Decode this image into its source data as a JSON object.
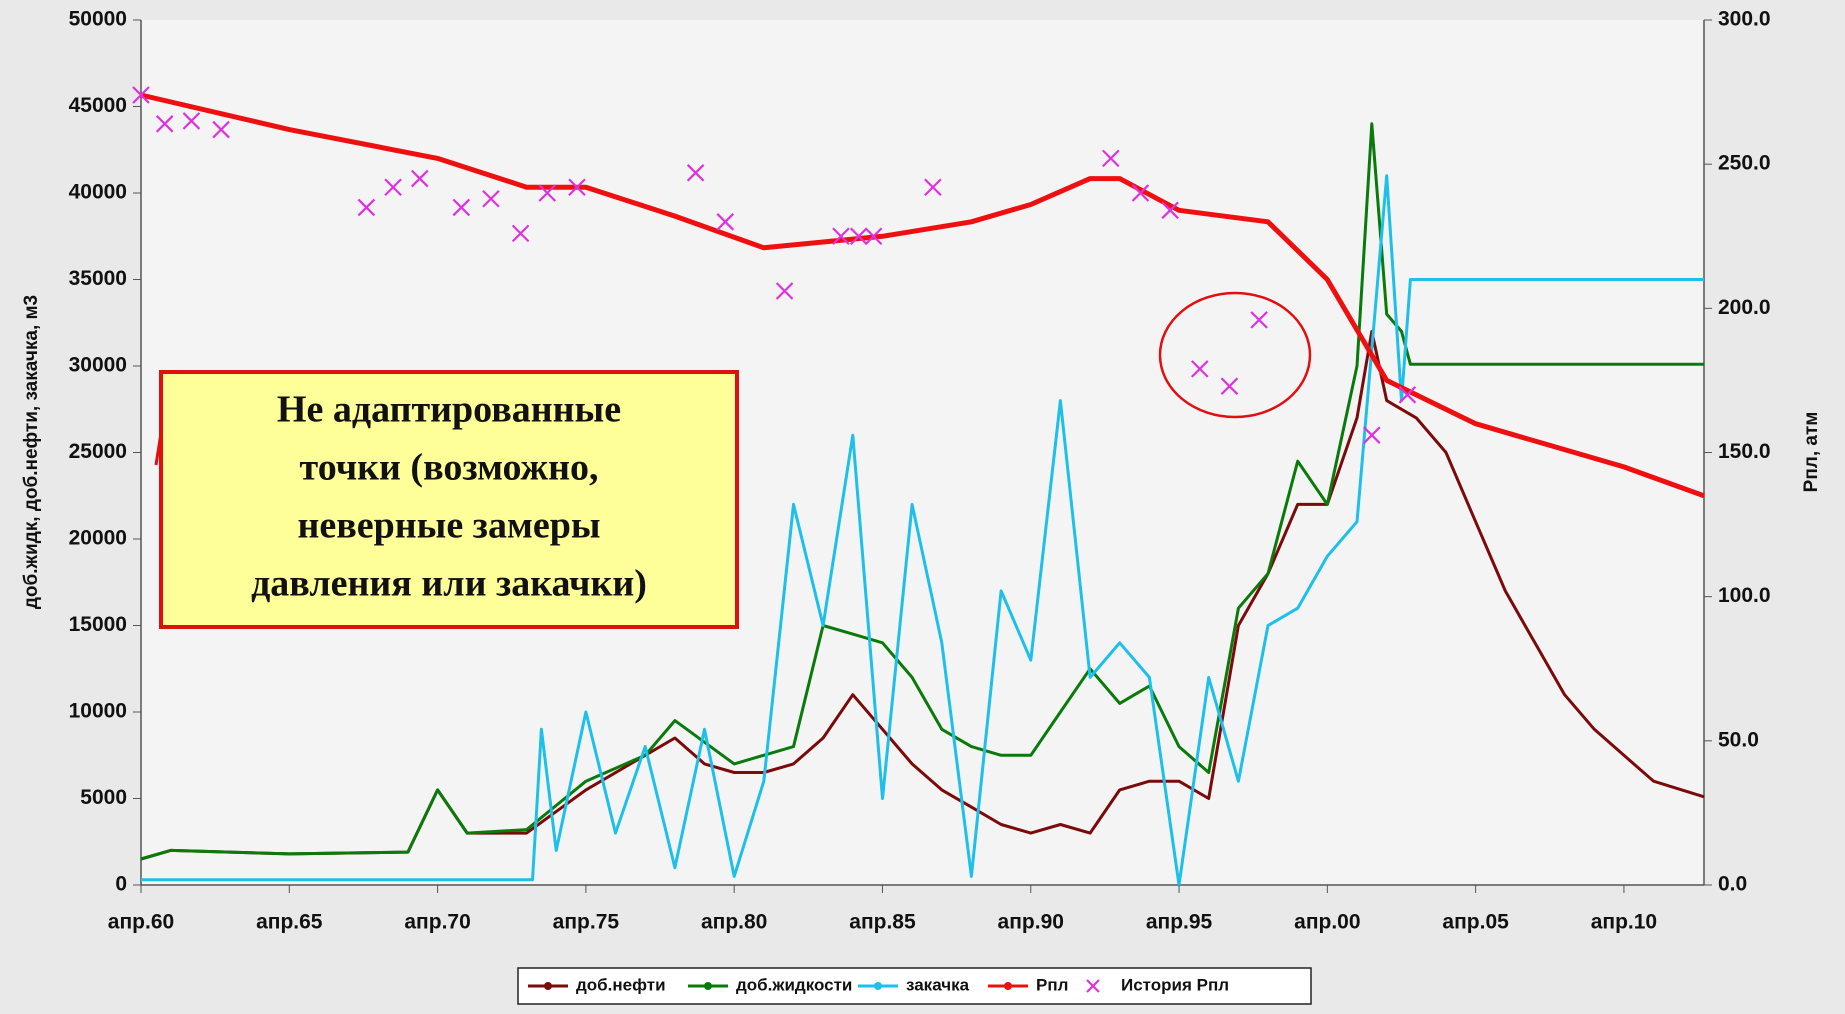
{
  "chart_data": {
    "type": "line",
    "ylabel": "доб.жидк, доб.нефти, закачка, м3",
    "y2label": "Рпл, атм",
    "xlim": [
      1960,
      2012.7
    ],
    "xticks": [
      {
        "value": 1960,
        "label": "апр.60"
      },
      {
        "value": 1965,
        "label": "апр.65"
      },
      {
        "value": 1970,
        "label": "апр.70"
      },
      {
        "value": 1975,
        "label": "апр.75"
      },
      {
        "value": 1980,
        "label": "апр.80"
      },
      {
        "value": 1985,
        "label": "апр.85"
      },
      {
        "value": 1990,
        "label": "апр.90"
      },
      {
        "value": 1995,
        "label": "апр.95"
      },
      {
        "value": 2000,
        "label": "апр.00"
      },
      {
        "value": 2005,
        "label": "апр.05"
      },
      {
        "value": 2010,
        "label": "апр.10"
      }
    ],
    "ylim": [
      0,
      50000
    ],
    "yticks": [
      0,
      5000,
      10000,
      15000,
      20000,
      25000,
      30000,
      35000,
      40000,
      45000,
      50000
    ],
    "y2lim": [
      0,
      300
    ],
    "y2ticks": [
      {
        "value": 0,
        "label": "0.0"
      },
      {
        "value": 50,
        "label": "50.0"
      },
      {
        "value": 100,
        "label": "100.0"
      },
      {
        "value": 150,
        "label": "150.0"
      },
      {
        "value": 200,
        "label": "200.0"
      },
      {
        "value": 250,
        "label": "250.0"
      },
      {
        "value": 300,
        "label": "300.0"
      }
    ],
    "grid": false,
    "legend": "bottom",
    "series": [
      {
        "name": "доб.нефти",
        "color": "#7b0a0a",
        "x": [
          1960,
          1961,
          1965,
          1969,
          1970,
          1971,
          1973,
          1975,
          1977,
          1978,
          1979,
          1980,
          1981,
          1982,
          1983,
          1984,
          1985,
          1986,
          1987,
          1988,
          1989,
          1990,
          1991,
          1992,
          1993,
          1994,
          1995,
          1996,
          1997,
          1998,
          1999,
          2000,
          2001,
          2001.5,
          2002,
          2003,
          2004,
          2005,
          2006,
          2007,
          2008,
          2009,
          2010,
          2011,
          2012.7
        ],
        "values": [
          1500,
          2000,
          1800,
          1900,
          5500,
          3000,
          3000,
          5500,
          7500,
          8500,
          7000,
          6500,
          6500,
          7000,
          8500,
          11000,
          9000,
          7000,
          5500,
          4500,
          3500,
          3000,
          3500,
          3000,
          5500,
          6000,
          6000,
          5000,
          15000,
          18000,
          22000,
          22000,
          27000,
          32000,
          28000,
          27000,
          25000,
          21000,
          17000,
          14000,
          11000,
          9000,
          7500,
          6000,
          5100
        ]
      },
      {
        "name": "доб.жидкости",
        "color": "#0a7a0a",
        "x": [
          1960,
          1961,
          1965,
          1969,
          1970,
          1971,
          1973,
          1975,
          1977,
          1978,
          1980,
          1982,
          1983,
          1984,
          1985,
          1986,
          1987,
          1988,
          1989,
          1990,
          1991,
          1992,
          1993,
          1994,
          1995,
          1996,
          1997,
          1998,
          1999,
          2000,
          2001,
          2001.5,
          2002,
          2002.5,
          2002.8,
          2012.7
        ],
        "values": [
          1500,
          2000,
          1800,
          1900,
          5500,
          3000,
          3200,
          6000,
          7500,
          9500,
          7000,
          8000,
          15000,
          14500,
          14000,
          12000,
          9000,
          8000,
          7500,
          7500,
          10000,
          12500,
          10500,
          11500,
          8000,
          6500,
          16000,
          18000,
          24500,
          22000,
          30000,
          44000,
          33000,
          32000,
          30100,
          30100
        ]
      },
      {
        "name": "закачка",
        "color": "#1ec0ea",
        "x": [
          1960,
          1973.2,
          1973.5,
          1974,
          1975,
          1976,
          1977,
          1978,
          1979,
          1980,
          1981,
          1981.5,
          1982,
          1983,
          1984,
          1985,
          1986,
          1987,
          1988,
          1989,
          1990,
          1991,
          1992,
          1993,
          1994,
          1995,
          1996,
          1997,
          1998,
          1999,
          2000,
          2001,
          2002,
          2002.5,
          2002.8,
          2012.7
        ],
        "values": [
          300,
          300,
          9000,
          2000,
          10000,
          3000,
          8000,
          1000,
          9000,
          500,
          6000,
          14000,
          22000,
          15000,
          26000,
          5000,
          22000,
          14000,
          500,
          17000,
          13000,
          28000,
          12000,
          14000,
          12000,
          0,
          12000,
          6000,
          15000,
          16000,
          19000,
          21000,
          41000,
          28000,
          35000,
          35000
        ]
      },
      {
        "name": "Рпл",
        "color": "#ee1010",
        "axis": "y2",
        "x": [
          1960,
          1965,
          1970,
          1973,
          1975,
          1978,
          1981,
          1985,
          1988,
          1990,
          1992,
          1993,
          1995,
          1998,
          2000,
          2002,
          2005,
          2010,
          2012.7
        ],
        "values": [
          274,
          262,
          252,
          242,
          242,
          232,
          221,
          225,
          230,
          236,
          245,
          245,
          234,
          230,
          210,
          175,
          160,
          145,
          135
        ]
      },
      {
        "name": "История Рпл",
        "color": "#dd33dd",
        "axis": "y2",
        "mode": "markers",
        "x": [
          1960,
          1960.8,
          1961.7,
          1962.7,
          1967.6,
          1968.5,
          1969.4,
          1970.8,
          1971.8,
          1972.8,
          1973.7,
          1974.7,
          1978.7,
          1979.7,
          1981.7,
          1983.6,
          1984.2,
          1984.7,
          1986.7,
          1992.7,
          1993.7,
          1994.7,
          1995.7,
          1996.7,
          1997.7,
          2001.5,
          2002.7
        ],
        "values": [
          274,
          264,
          265,
          262,
          235,
          242,
          245,
          235,
          238,
          226,
          240,
          242,
          247,
          230,
          206,
          225,
          225,
          225,
          242,
          252,
          240,
          234,
          179,
          173,
          196,
          156,
          170
        ]
      }
    ],
    "annotation_lines": [
      "Не адаптированные",
      "точки (возможно,",
      "неверные замеры",
      "давления или закачки)"
    ]
  }
}
